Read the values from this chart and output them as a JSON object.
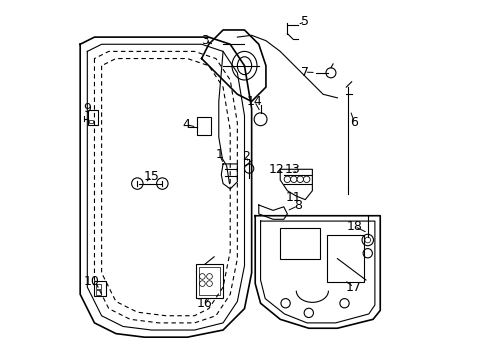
{
  "bg_color": "#ffffff",
  "line_color": "#000000",
  "label_color": "#000000",
  "font_size": 9,
  "dpi": 100,
  "figsize": [
    4.89,
    3.6
  ]
}
